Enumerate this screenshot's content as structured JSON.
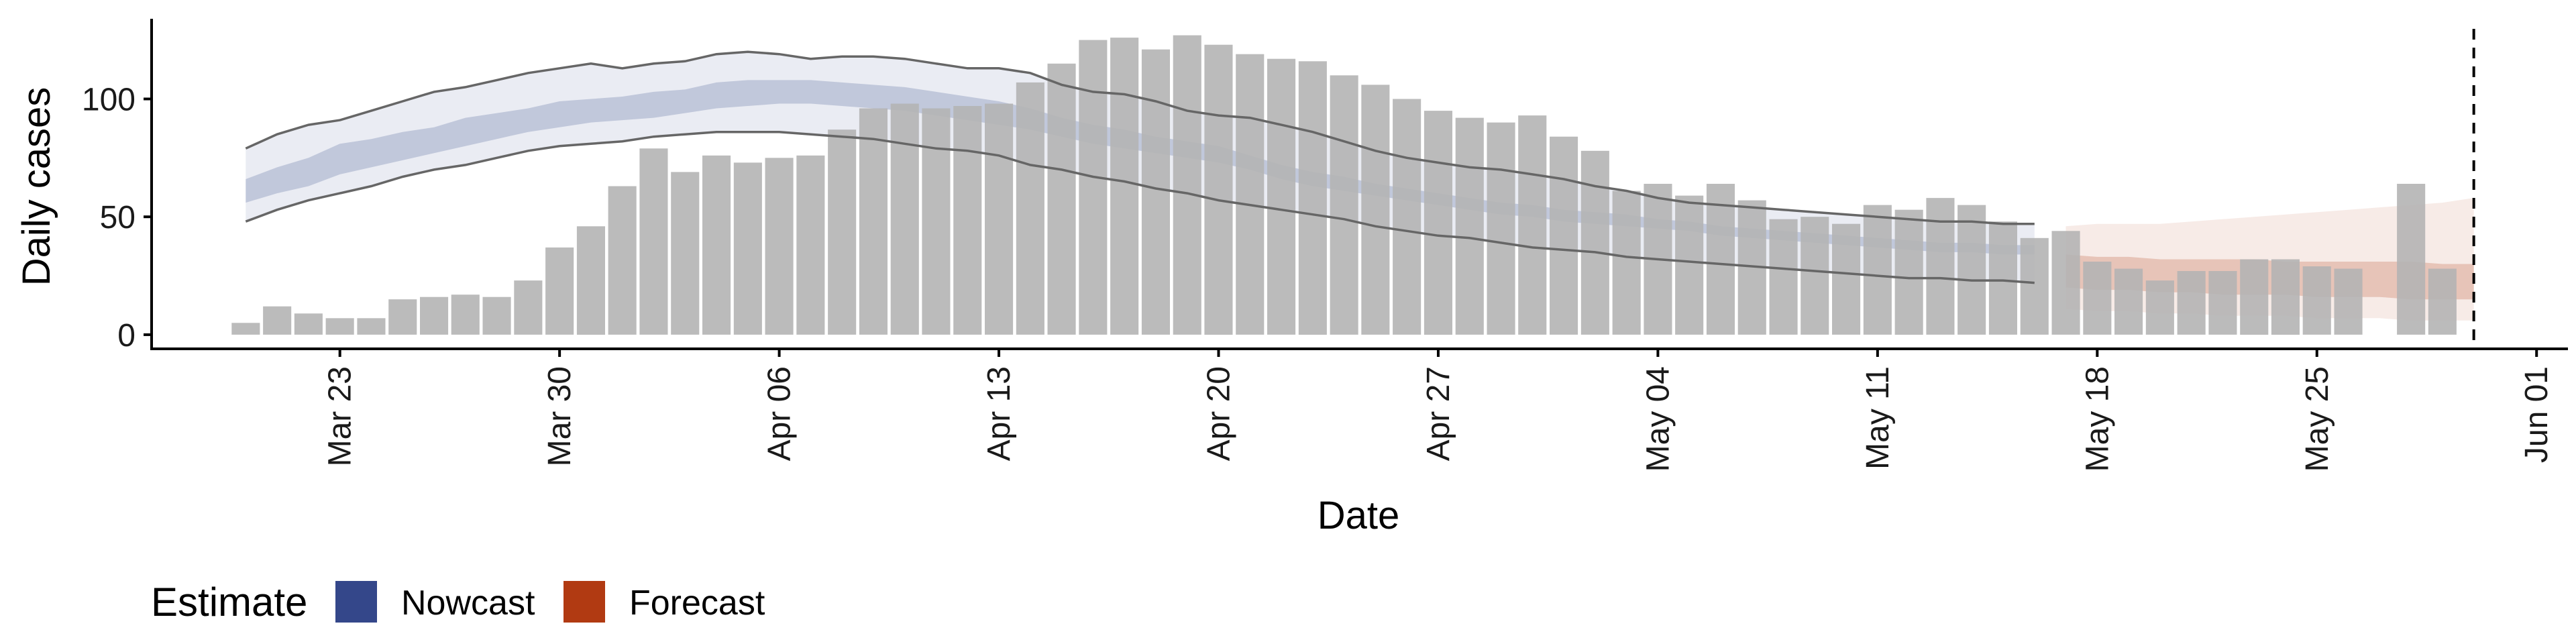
{
  "chart_data": {
    "type": "bar",
    "xlabel": "Date",
    "ylabel": "Daily cases",
    "x_tick_labels": [
      "Mar 23",
      "Mar 30",
      "Apr 06",
      "Apr 13",
      "Apr 20",
      "Apr 27",
      "May 04",
      "May 11",
      "May 18",
      "May 25",
      "Jun 01"
    ],
    "y_tick_labels": [
      "0",
      "50",
      "100"
    ],
    "y_ticks": [
      0,
      50,
      100
    ],
    "ylim": [
      -6,
      134
    ],
    "xlim": [
      "2020-03-17",
      "2020-06-02"
    ],
    "grid": false,
    "legend_position": "bottom-left",
    "legend": {
      "title": "Estimate",
      "items": [
        {
          "label": "Nowcast",
          "color": "#34478A"
        },
        {
          "label": "Forecast",
          "color": "#B13A12"
        }
      ]
    },
    "bar_color": "#B4B4B4",
    "forecast_start": "2020-05-17",
    "vline_date": "2020-05-30",
    "observed_cases": {
      "dates": [
        "2020-03-20",
        "2020-03-21",
        "2020-03-22",
        "2020-03-23",
        "2020-03-24",
        "2020-03-25",
        "2020-03-26",
        "2020-03-27",
        "2020-03-28",
        "2020-03-29",
        "2020-03-30",
        "2020-03-31",
        "2020-04-01",
        "2020-04-02",
        "2020-04-03",
        "2020-04-04",
        "2020-04-05",
        "2020-04-06",
        "2020-04-07",
        "2020-04-08",
        "2020-04-09",
        "2020-04-10",
        "2020-04-11",
        "2020-04-12",
        "2020-04-13",
        "2020-04-14",
        "2020-04-15",
        "2020-04-16",
        "2020-04-17",
        "2020-04-18",
        "2020-04-19",
        "2020-04-20",
        "2020-04-21",
        "2020-04-22",
        "2020-04-23",
        "2020-04-24",
        "2020-04-25",
        "2020-04-26",
        "2020-04-27",
        "2020-04-28",
        "2020-04-29",
        "2020-04-30",
        "2020-05-01",
        "2020-05-02",
        "2020-05-03",
        "2020-05-04",
        "2020-05-05",
        "2020-05-06",
        "2020-05-07",
        "2020-05-08",
        "2020-05-09",
        "2020-05-10",
        "2020-05-11",
        "2020-05-12",
        "2020-05-13",
        "2020-05-14",
        "2020-05-15",
        "2020-05-16",
        "2020-05-17",
        "2020-05-18",
        "2020-05-19",
        "2020-05-20",
        "2020-05-21",
        "2020-05-22",
        "2020-05-23",
        "2020-05-24",
        "2020-05-25",
        "2020-05-26",
        "2020-05-27",
        "2020-05-28",
        "2020-05-29",
        "2020-05-30"
      ],
      "values": [
        5,
        12,
        9,
        7,
        7,
        15,
        16,
        17,
        16,
        23,
        37,
        46,
        63,
        79,
        69,
        76,
        73,
        75,
        76,
        87,
        96,
        98,
        96,
        97,
        98,
        107,
        115,
        125,
        126,
        121,
        127,
        123,
        119,
        117,
        116,
        110,
        106,
        100,
        95,
        92,
        90,
        93,
        84,
        78,
        61,
        64,
        59,
        64,
        57,
        49,
        50,
        47,
        55,
        53,
        58,
        55,
        48,
        41,
        44,
        31,
        28,
        23,
        27,
        27,
        32,
        32,
        29,
        28,
        0,
        64,
        28,
        0
      ]
    },
    "nowcast": {
      "dates": [
        "2020-03-20",
        "2020-03-21",
        "2020-03-22",
        "2020-03-23",
        "2020-03-24",
        "2020-03-25",
        "2020-03-26",
        "2020-03-27",
        "2020-03-28",
        "2020-03-29",
        "2020-03-30",
        "2020-03-31",
        "2020-04-01",
        "2020-04-02",
        "2020-04-03",
        "2020-04-04",
        "2020-04-05",
        "2020-04-06",
        "2020-04-07",
        "2020-04-08",
        "2020-04-09",
        "2020-04-10",
        "2020-04-11",
        "2020-04-12",
        "2020-04-13",
        "2020-04-14",
        "2020-04-15",
        "2020-04-16",
        "2020-04-17",
        "2020-04-18",
        "2020-04-19",
        "2020-04-20",
        "2020-04-21",
        "2020-04-22",
        "2020-04-23",
        "2020-04-24",
        "2020-04-25",
        "2020-04-26",
        "2020-04-27",
        "2020-04-28",
        "2020-04-29",
        "2020-04-30",
        "2020-05-01",
        "2020-05-02",
        "2020-05-03",
        "2020-05-04",
        "2020-05-05",
        "2020-05-06",
        "2020-05-07",
        "2020-05-08",
        "2020-05-09",
        "2020-05-10",
        "2020-05-11",
        "2020-05-12",
        "2020-05-13",
        "2020-05-14",
        "2020-05-15",
        "2020-05-16"
      ],
      "outer_upper": [
        79,
        85,
        89,
        91,
        95,
        99,
        103,
        105,
        108,
        111,
        113,
        115,
        113,
        115,
        116,
        119,
        120,
        119,
        117,
        118,
        118,
        117,
        115,
        113,
        113,
        111,
        106,
        103,
        102,
        99,
        95,
        93,
        92,
        89,
        86,
        82,
        78,
        75,
        73,
        71,
        70,
        68,
        66,
        63,
        61,
        58,
        56,
        55,
        54,
        53,
        52,
        51,
        50,
        49,
        48,
        48,
        47,
        47
      ],
      "inner_upper": [
        66,
        71,
        75,
        81,
        83,
        86,
        88,
        92,
        94,
        96,
        99,
        100,
        101,
        103,
        104,
        107,
        108,
        108,
        108,
        107,
        106,
        105,
        103,
        101,
        99,
        96,
        92,
        89,
        87,
        84,
        82,
        80,
        76,
        72,
        69,
        67,
        64,
        62,
        60,
        58,
        56,
        55,
        53,
        52,
        51,
        49,
        48,
        46,
        45,
        44,
        43,
        42,
        41,
        40,
        39,
        39,
        38,
        38
      ],
      "inner_lower": [
        56,
        60,
        63,
        68,
        71,
        74,
        77,
        80,
        83,
        86,
        88,
        90,
        91,
        92,
        94,
        96,
        97,
        98,
        98,
        97,
        96,
        95,
        93,
        91,
        89,
        87,
        84,
        81,
        79,
        77,
        75,
        73,
        70,
        66,
        63,
        61,
        59,
        57,
        55,
        53,
        51,
        50,
        48,
        47,
        46,
        45,
        44,
        42,
        41,
        40,
        39,
        38,
        37,
        36,
        35,
        35,
        34,
        34
      ],
      "outer_lower": [
        48,
        53,
        57,
        60,
        63,
        67,
        70,
        72,
        75,
        78,
        80,
        81,
        82,
        84,
        85,
        86,
        86,
        86,
        85,
        84,
        83,
        81,
        79,
        78,
        76,
        72,
        70,
        67,
        65,
        62,
        60,
        57,
        55,
        53,
        51,
        49,
        46,
        44,
        42,
        41,
        39,
        37,
        36,
        35,
        33,
        32,
        31,
        30,
        29,
        28,
        27,
        26,
        25,
        24,
        24,
        23,
        23,
        22
      ]
    },
    "forecast": {
      "dates": [
        "2020-05-17",
        "2020-05-18",
        "2020-05-19",
        "2020-05-20",
        "2020-05-21",
        "2020-05-22",
        "2020-05-23",
        "2020-05-24",
        "2020-05-25",
        "2020-05-26",
        "2020-05-27",
        "2020-05-28",
        "2020-05-29",
        "2020-05-30"
      ],
      "outer_upper": [
        46,
        47,
        47,
        47,
        48,
        49,
        50,
        51,
        52,
        53,
        54,
        55,
        56,
        58
      ],
      "inner_upper": [
        34,
        33,
        33,
        32,
        32,
        32,
        32,
        31,
        31,
        31,
        31,
        31,
        30,
        30
      ],
      "inner_lower": [
        20,
        19,
        19,
        18,
        18,
        17,
        17,
        17,
        16,
        16,
        16,
        15,
        15,
        15
      ],
      "outer_lower": [
        11,
        10,
        10,
        9,
        9,
        8,
        8,
        8,
        7,
        7,
        7,
        6,
        6,
        6
      ]
    }
  }
}
